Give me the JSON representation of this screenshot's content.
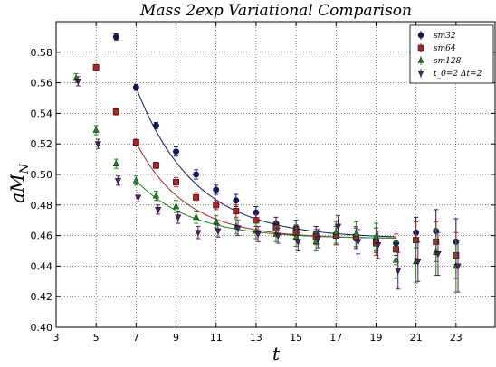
{
  "chart_data": {
    "type": "scatter",
    "title": "Mass 2exp Variational Comparison",
    "xlabel": "t",
    "ylabel": "aM_N",
    "xlim": [
      3,
      25
    ],
    "ylim": [
      0.4,
      0.6
    ],
    "xticks": [
      "3",
      "5",
      "7",
      "9",
      "11",
      "13",
      "15",
      "17",
      "19",
      "21",
      "23"
    ],
    "yticks": [
      "0.40",
      "0.42",
      "0.44",
      "0.46",
      "0.48",
      "0.50",
      "0.52",
      "0.54",
      "0.56",
      "0.58"
    ],
    "grid": true,
    "legend_position": "top-right",
    "series": [
      {
        "name": "sm32",
        "marker": "circle",
        "color": "#0b1a6e",
        "points": [
          {
            "x": 6.0,
            "y": 0.59,
            "e": 0.002
          },
          {
            "x": 7.0,
            "y": 0.557,
            "e": 0.002
          },
          {
            "x": 8.0,
            "y": 0.532,
            "e": 0.002
          },
          {
            "x": 9.0,
            "y": 0.515,
            "e": 0.003
          },
          {
            "x": 10.0,
            "y": 0.5,
            "e": 0.003
          },
          {
            "x": 11.0,
            "y": 0.49,
            "e": 0.003
          },
          {
            "x": 12.0,
            "y": 0.483,
            "e": 0.004
          },
          {
            "x": 13.0,
            "y": 0.475,
            "e": 0.004
          },
          {
            "x": 14.0,
            "y": 0.468,
            "e": 0.004
          },
          {
            "x": 15.0,
            "y": 0.465,
            "e": 0.005
          },
          {
            "x": 16.0,
            "y": 0.461,
            "e": 0.005
          },
          {
            "x": 17.0,
            "y": 0.46,
            "e": 0.006
          },
          {
            "x": 18.0,
            "y": 0.458,
            "e": 0.007
          },
          {
            "x": 19.0,
            "y": 0.457,
            "e": 0.008
          },
          {
            "x": 20.0,
            "y": 0.455,
            "e": 0.008
          },
          {
            "x": 21.0,
            "y": 0.462,
            "e": 0.01
          },
          {
            "x": 22.0,
            "y": 0.463,
            "e": 0.014
          },
          {
            "x": 23.0,
            "y": 0.456,
            "e": 0.015
          }
        ],
        "fit": {
          "from": 7,
          "to": 20,
          "plateau": 0.458,
          "amp": 0.099,
          "decay": 0.34
        }
      },
      {
        "name": "sm64",
        "marker": "square",
        "color": "#b22222",
        "points": [
          {
            "x": 5.0,
            "y": 0.57,
            "e": 0.002
          },
          {
            "x": 6.0,
            "y": 0.541,
            "e": 0.002
          },
          {
            "x": 7.0,
            "y": 0.521,
            "e": 0.002
          },
          {
            "x": 8.0,
            "y": 0.506,
            "e": 0.002
          },
          {
            "x": 9.0,
            "y": 0.495,
            "e": 0.003
          },
          {
            "x": 10.0,
            "y": 0.485,
            "e": 0.003
          },
          {
            "x": 11.0,
            "y": 0.48,
            "e": 0.003
          },
          {
            "x": 12.0,
            "y": 0.476,
            "e": 0.004
          },
          {
            "x": 13.0,
            "y": 0.47,
            "e": 0.004
          },
          {
            "x": 14.0,
            "y": 0.465,
            "e": 0.004
          },
          {
            "x": 15.0,
            "y": 0.462,
            "e": 0.005
          },
          {
            "x": 16.0,
            "y": 0.459,
            "e": 0.005
          },
          {
            "x": 17.0,
            "y": 0.46,
            "e": 0.006
          },
          {
            "x": 18.0,
            "y": 0.459,
            "e": 0.007
          },
          {
            "x": 19.0,
            "y": 0.455,
            "e": 0.008
          },
          {
            "x": 20.0,
            "y": 0.451,
            "e": 0.01
          },
          {
            "x": 21.0,
            "y": 0.457,
            "e": 0.012
          },
          {
            "x": 22.0,
            "y": 0.456,
            "e": 0.013
          },
          {
            "x": 23.0,
            "y": 0.447,
            "e": 0.015
          }
        ],
        "fit": {
          "from": 7,
          "to": 20,
          "plateau": 0.458,
          "amp": 0.063,
          "decay": 0.4
        }
      },
      {
        "name": "sm128",
        "marker": "triangle-up",
        "color": "#1a8c1a",
        "points": [
          {
            "x": 4.0,
            "y": 0.563,
            "e": 0.003
          },
          {
            "x": 5.0,
            "y": 0.529,
            "e": 0.003
          },
          {
            "x": 6.0,
            "y": 0.507,
            "e": 0.003
          },
          {
            "x": 7.0,
            "y": 0.496,
            "e": 0.003
          },
          {
            "x": 8.0,
            "y": 0.486,
            "e": 0.003
          },
          {
            "x": 9.0,
            "y": 0.479,
            "e": 0.004
          },
          {
            "x": 10.0,
            "y": 0.472,
            "e": 0.004
          },
          {
            "x": 11.0,
            "y": 0.469,
            "e": 0.004
          },
          {
            "x": 12.0,
            "y": 0.466,
            "e": 0.005
          },
          {
            "x": 13.0,
            "y": 0.463,
            "e": 0.005
          },
          {
            "x": 14.0,
            "y": 0.461,
            "e": 0.005
          },
          {
            "x": 15.0,
            "y": 0.459,
            "e": 0.006
          },
          {
            "x": 16.0,
            "y": 0.456,
            "e": 0.006
          },
          {
            "x": 17.0,
            "y": 0.462,
            "e": 0.007
          },
          {
            "x": 18.0,
            "y": 0.461,
            "e": 0.008
          },
          {
            "x": 19.0,
            "y": 0.459,
            "e": 0.009
          },
          {
            "x": 20.0,
            "y": 0.444,
            "e": 0.012
          },
          {
            "x": 21.0,
            "y": 0.443,
            "e": 0.014
          },
          {
            "x": 22.0,
            "y": 0.449,
            "e": 0.015
          },
          {
            "x": 23.0,
            "y": 0.44,
            "e": 0.017
          }
        ],
        "fit": {
          "from": 7,
          "to": 20,
          "plateau": 0.458,
          "amp": 0.038,
          "decay": 0.36
        }
      },
      {
        "name": "t_0=2 Δt=2",
        "marker": "triangle-down",
        "color": "#5a1a6e",
        "points": [
          {
            "x": 4.1,
            "y": 0.561,
            "e": 0.003
          },
          {
            "x": 5.1,
            "y": 0.52,
            "e": 0.003
          },
          {
            "x": 6.1,
            "y": 0.496,
            "e": 0.003
          },
          {
            "x": 7.1,
            "y": 0.485,
            "e": 0.003
          },
          {
            "x": 8.1,
            "y": 0.477,
            "e": 0.003
          },
          {
            "x": 9.1,
            "y": 0.472,
            "e": 0.004
          },
          {
            "x": 10.1,
            "y": 0.462,
            "e": 0.004
          },
          {
            "x": 11.1,
            "y": 0.463,
            "e": 0.004
          },
          {
            "x": 12.1,
            "y": 0.465,
            "e": 0.005
          },
          {
            "x": 13.1,
            "y": 0.461,
            "e": 0.005
          },
          {
            "x": 14.1,
            "y": 0.46,
            "e": 0.005
          },
          {
            "x": 15.1,
            "y": 0.456,
            "e": 0.006
          },
          {
            "x": 16.1,
            "y": 0.458,
            "e": 0.006
          },
          {
            "x": 17.1,
            "y": 0.466,
            "e": 0.007
          },
          {
            "x": 18.1,
            "y": 0.456,
            "e": 0.008
          },
          {
            "x": 19.1,
            "y": 0.454,
            "e": 0.009
          },
          {
            "x": 20.1,
            "y": 0.437,
            "e": 0.012
          },
          {
            "x": 21.1,
            "y": 0.443,
            "e": 0.013
          },
          {
            "x": 22.1,
            "y": 0.448,
            "e": 0.014
          },
          {
            "x": 23.1,
            "y": 0.44,
            "e": 0.017
          }
        ]
      }
    ]
  }
}
